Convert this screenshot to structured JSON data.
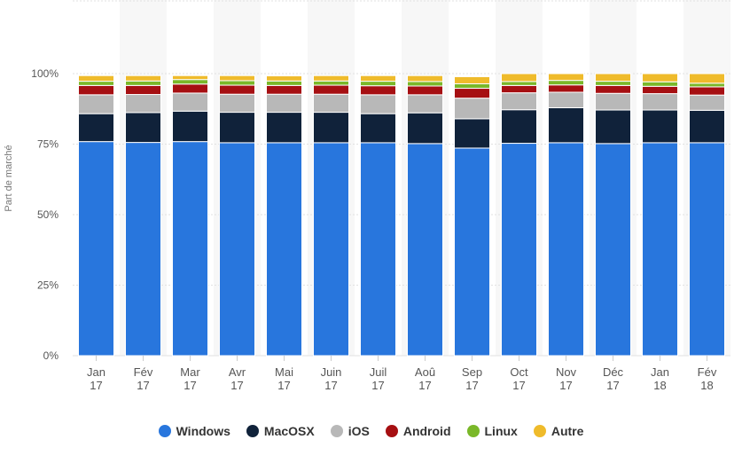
{
  "chart_data": {
    "type": "bar",
    "stacked": true,
    "ylabel": "Part de marché",
    "ylim": [
      0,
      100
    ],
    "y_ticks": [
      "0%",
      "25%",
      "50%",
      "75%",
      "100%"
    ],
    "categories": [
      [
        "Jan",
        "17"
      ],
      [
        "Fév",
        "17"
      ],
      [
        "Mar",
        "17"
      ],
      [
        "Avr",
        "17"
      ],
      [
        "Mai",
        "17"
      ],
      [
        "Juin",
        "17"
      ],
      [
        "Juil",
        "17"
      ],
      [
        "Aoû",
        "17"
      ],
      [
        "Sep",
        "17"
      ],
      [
        "Oct",
        "17"
      ],
      [
        "Nov",
        "17"
      ],
      [
        "Déc",
        "17"
      ],
      [
        "Jan",
        "18"
      ],
      [
        "Fév",
        "18"
      ]
    ],
    "series": [
      {
        "name": "Windows",
        "color": "#2876dd",
        "values": [
          75.9,
          75.6,
          75.9,
          75.5,
          75.5,
          75.5,
          75.5,
          75.2,
          73.6,
          75.3,
          75.5,
          75.2,
          75.5,
          75.5
        ]
      },
      {
        "name": "MacOSX",
        "color": "#10223a",
        "values": [
          9.9,
          10.6,
          10.8,
          10.8,
          10.8,
          10.8,
          10.3,
          10.9,
          10.4,
          11.9,
          12.4,
          11.9,
          11.6,
          11.5
        ]
      },
      {
        "name": "iOS",
        "color": "#b8b8b8",
        "values": [
          6.7,
          6.4,
          6.4,
          6.4,
          6.4,
          6.4,
          6.7,
          6.4,
          7.3,
          6.0,
          5.5,
          5.9,
          5.8,
          5.4
        ]
      },
      {
        "name": "Android",
        "color": "#a60f12",
        "values": [
          3.3,
          3.2,
          3.2,
          3.2,
          3.1,
          3.2,
          3.2,
          3.1,
          3.5,
          2.6,
          2.6,
          2.8,
          2.6,
          2.9
        ]
      },
      {
        "name": "Linux",
        "color": "#7ab829",
        "values": [
          1.5,
          1.6,
          1.6,
          1.6,
          1.6,
          1.5,
          1.6,
          1.6,
          1.6,
          1.4,
          1.6,
          1.5,
          1.6,
          1.3
        ]
      },
      {
        "name": "Autre",
        "color": "#efbb2b",
        "values": [
          2.0,
          1.9,
          1.4,
          1.8,
          1.8,
          1.9,
          2.0,
          2.1,
          2.5,
          2.8,
          2.4,
          2.7,
          2.9,
          3.4
        ]
      }
    ],
    "grid": true,
    "legend_position": "bottom"
  }
}
